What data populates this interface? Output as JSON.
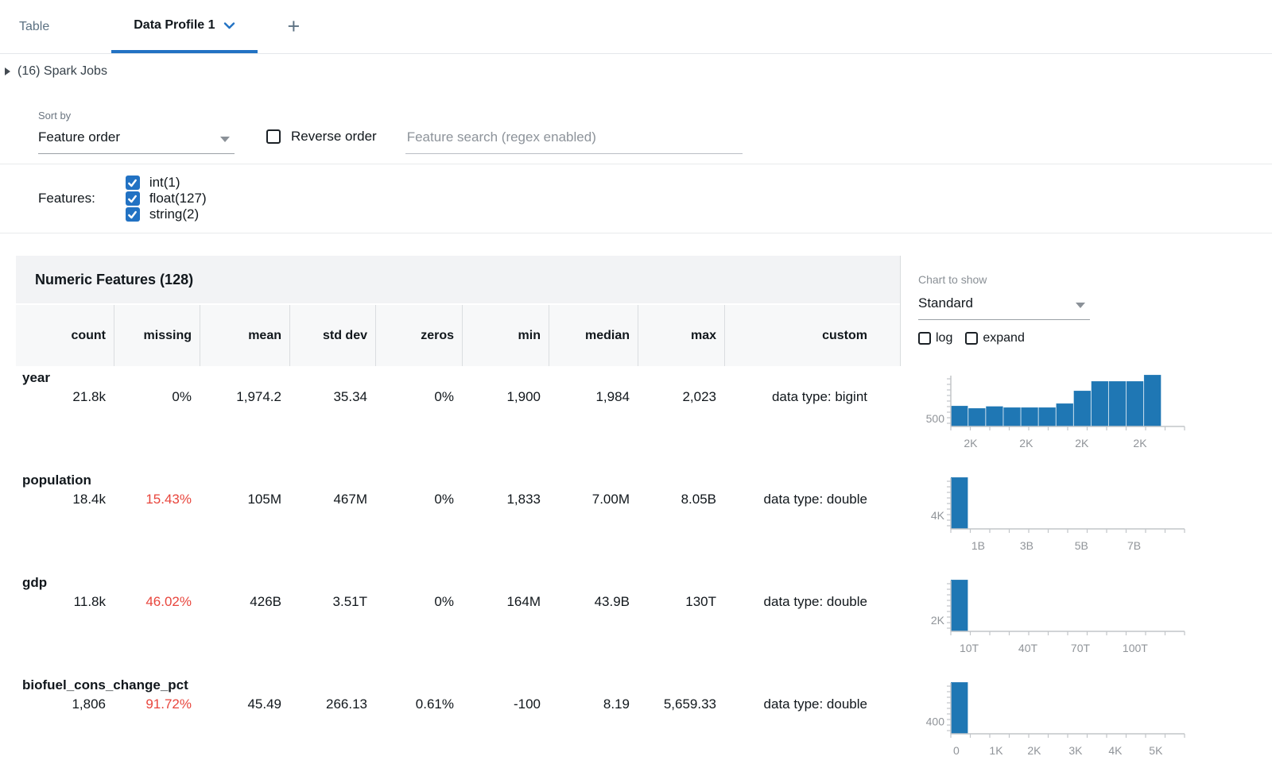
{
  "tabs": {
    "table": "Table",
    "data_profile": "Data Profile 1",
    "add": "+"
  },
  "spark_jobs": "(16) Spark Jobs",
  "controls": {
    "sort_by_label": "Sort by",
    "sort_by_value": "Feature order",
    "reverse_order_label": "Reverse order",
    "search_placeholder": "Feature search (regex enabled)",
    "features_label": "Features:",
    "feature_types": [
      {
        "label": "int(1)",
        "checked": true
      },
      {
        "label": "float(127)",
        "checked": true
      },
      {
        "label": "string(2)",
        "checked": true
      }
    ]
  },
  "table": {
    "title": "Numeric Features (128)",
    "columns": [
      "count",
      "missing",
      "mean",
      "std dev",
      "zeros",
      "min",
      "median",
      "max",
      "custom"
    ],
    "chart_controls": {
      "label": "Chart to show",
      "value": "Standard",
      "log_label": "log",
      "expand_label": "expand"
    }
  },
  "rows": [
    {
      "name": "year",
      "values": [
        "21.8k",
        "0%",
        "1,974.2",
        "35.34",
        "0%",
        "1,900",
        "1,984",
        "2,023",
        "data type: bigint"
      ],
      "missing_red": false
    },
    {
      "name": "population",
      "values": [
        "18.4k",
        "15.43%",
        "105M",
        "467M",
        "0%",
        "1,833",
        "7.00M",
        "8.05B",
        "data type: double"
      ],
      "missing_red": true
    },
    {
      "name": "gdp",
      "values": [
        "11.8k",
        "46.02%",
        "426B",
        "3.51T",
        "0%",
        "164M",
        "43.9B",
        "130T",
        "data type: double"
      ],
      "missing_red": true
    },
    {
      "name": "biofuel_cons_change_pct",
      "values": [
        "1,806",
        "91.72%",
        "45.49",
        "266.13",
        "0.61%",
        "-100",
        "8.19",
        "5,659.33",
        "data type: double"
      ],
      "missing_red": true
    }
  ],
  "chart_data": [
    {
      "type": "bar",
      "title": "year histogram",
      "bins": [
        1300,
        1150,
        1270,
        1200,
        1200,
        1200,
        1450,
        2250,
        2850,
        2850,
        2850,
        3250
      ],
      "y_tick": {
        "label": "500",
        "value": 500
      },
      "x_ticks": [
        {
          "label": "2K",
          "pos": 0.094
        },
        {
          "label": "2K",
          "pos": 0.358
        },
        {
          "label": "2K",
          "pos": 0.622
        },
        {
          "label": "2K",
          "pos": 0.898
        }
      ],
      "x_range": [
        "1,900",
        "2,023"
      ],
      "grid": false
    },
    {
      "type": "bar",
      "title": "population histogram",
      "bins": [
        15500,
        0,
        0,
        0,
        0,
        0,
        0,
        0,
        0,
        0,
        0,
        0
      ],
      "y_tick": {
        "label": "4K",
        "value": 4000
      },
      "x_ticks": [
        {
          "label": "1B",
          "pos": 0.13
        },
        {
          "label": "3B",
          "pos": 0.36
        },
        {
          "label": "5B",
          "pos": 0.62
        },
        {
          "label": "7B",
          "pos": 0.87
        }
      ],
      "x_range": [
        "1,833",
        "8.05B"
      ],
      "grid": false
    },
    {
      "type": "bar",
      "title": "gdp histogram",
      "bins": [
        9200,
        0,
        0,
        0,
        0,
        0,
        0,
        0,
        0,
        0,
        0,
        0
      ],
      "y_tick": {
        "label": "2K",
        "value": 2000
      },
      "x_ticks": [
        {
          "label": "10T",
          "pos": 0.087
        },
        {
          "label": "40T",
          "pos": 0.366
        },
        {
          "label": "70T",
          "pos": 0.615
        },
        {
          "label": "100T",
          "pos": 0.875
        }
      ],
      "x_range": [
        "164M",
        "130T"
      ],
      "grid": false
    },
    {
      "type": "bar",
      "title": "biofuel_cons_change_pct histogram",
      "bins": [
        1700,
        0,
        0,
        0,
        0,
        0,
        0,
        0,
        0,
        0,
        0,
        0
      ],
      "y_tick": {
        "label": "400",
        "value": 400
      },
      "x_ticks": [
        {
          "label": "0",
          "pos": 0.026
        },
        {
          "label": "1K",
          "pos": 0.215
        },
        {
          "label": "2K",
          "pos": 0.396
        },
        {
          "label": "3K",
          "pos": 0.592
        },
        {
          "label": "4K",
          "pos": 0.781
        },
        {
          "label": "5K",
          "pos": 0.973
        }
      ],
      "x_range": [
        "-100",
        "5,659.33"
      ],
      "grid": false
    }
  ],
  "colors": {
    "accent": "#2272c3",
    "bar": "#1f77b4",
    "missing_red": "#e8453c",
    "axis": "#c2c5c9",
    "chart_label": "#909499"
  }
}
